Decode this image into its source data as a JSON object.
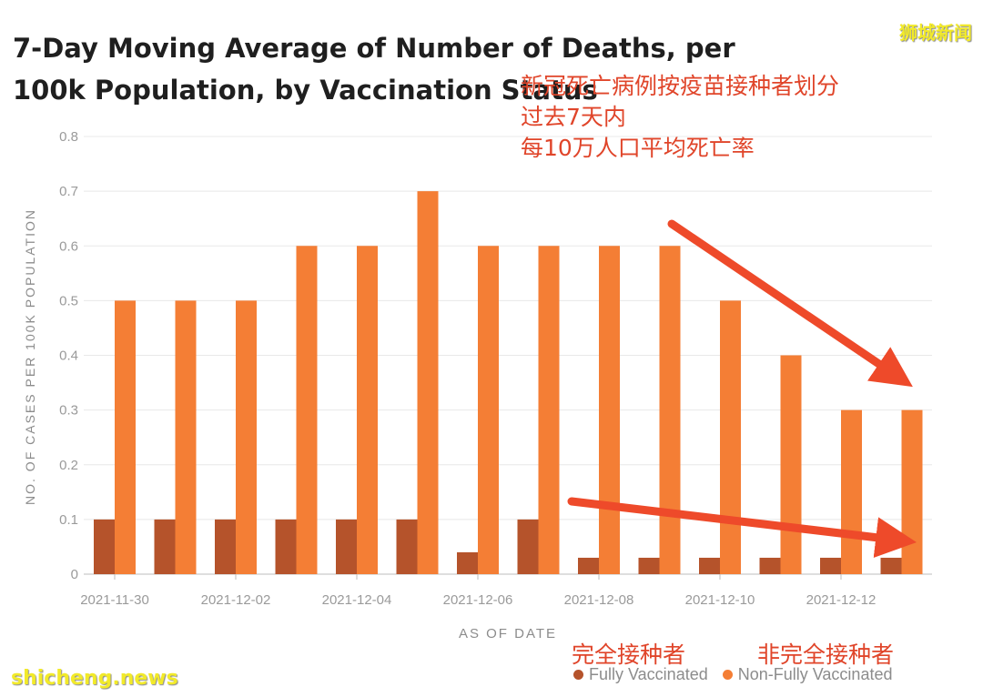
{
  "header": {
    "title": "7-Day Moving Average of Number of Deaths, per 100k Population, by Vaccination Status",
    "cn_title": "新冠死亡病例按疫苗接种者划分\n过去7天内\n每10万人口平均死亡率"
  },
  "watermarks": {
    "top_right": "狮城新闻",
    "bottom_left": "shicheng.news"
  },
  "legend_cn": {
    "fully": "完全接种者",
    "non_fully": "非完全接种者"
  },
  "colors": {
    "fully": "#b5532b",
    "non_fully": "#f47e35",
    "annotation": "#ee4a2a",
    "grid": "#e8e8e8",
    "tick_text": "#9a9a9a"
  },
  "chart_data": {
    "type": "bar",
    "title": "7-Day Moving Average of Number of Deaths, per 100k Population, by Vaccination Status",
    "xlabel": "AS OF DATE",
    "ylabel": "NO. OF CASES PER 100K POPULATION",
    "ylim": [
      0,
      0.8
    ],
    "yticks": [
      "0",
      "0.1",
      "0.2",
      "0.3",
      "0.4",
      "0.5",
      "0.6",
      "0.7",
      "0.8"
    ],
    "categories": [
      "2021-11-30",
      "2021-12-01",
      "2021-12-02",
      "2021-12-03",
      "2021-12-04",
      "2021-12-05",
      "2021-12-06",
      "2021-12-07",
      "2021-12-08",
      "2021-12-09",
      "2021-12-10",
      "2021-12-11",
      "2021-12-12",
      "2021-12-13"
    ],
    "xtick_labels": [
      "2021-11-30",
      "2021-12-02",
      "2021-12-04",
      "2021-12-06",
      "2021-12-08",
      "2021-12-10",
      "2021-12-12"
    ],
    "series": [
      {
        "name": "Fully Vaccinated",
        "values": [
          0.1,
          0.1,
          0.1,
          0.1,
          0.1,
          0.1,
          0.04,
          0.1,
          0.03,
          0.03,
          0.03,
          0.03,
          0.03,
          0.03
        ]
      },
      {
        "name": "Non-Fully Vaccinated",
        "values": [
          0.5,
          0.5,
          0.5,
          0.6,
          0.6,
          0.7,
          0.6,
          0.6,
          0.6,
          0.6,
          0.5,
          0.4,
          0.3,
          0.3
        ]
      }
    ],
    "grid": true,
    "legend_position": "bottom-right"
  }
}
